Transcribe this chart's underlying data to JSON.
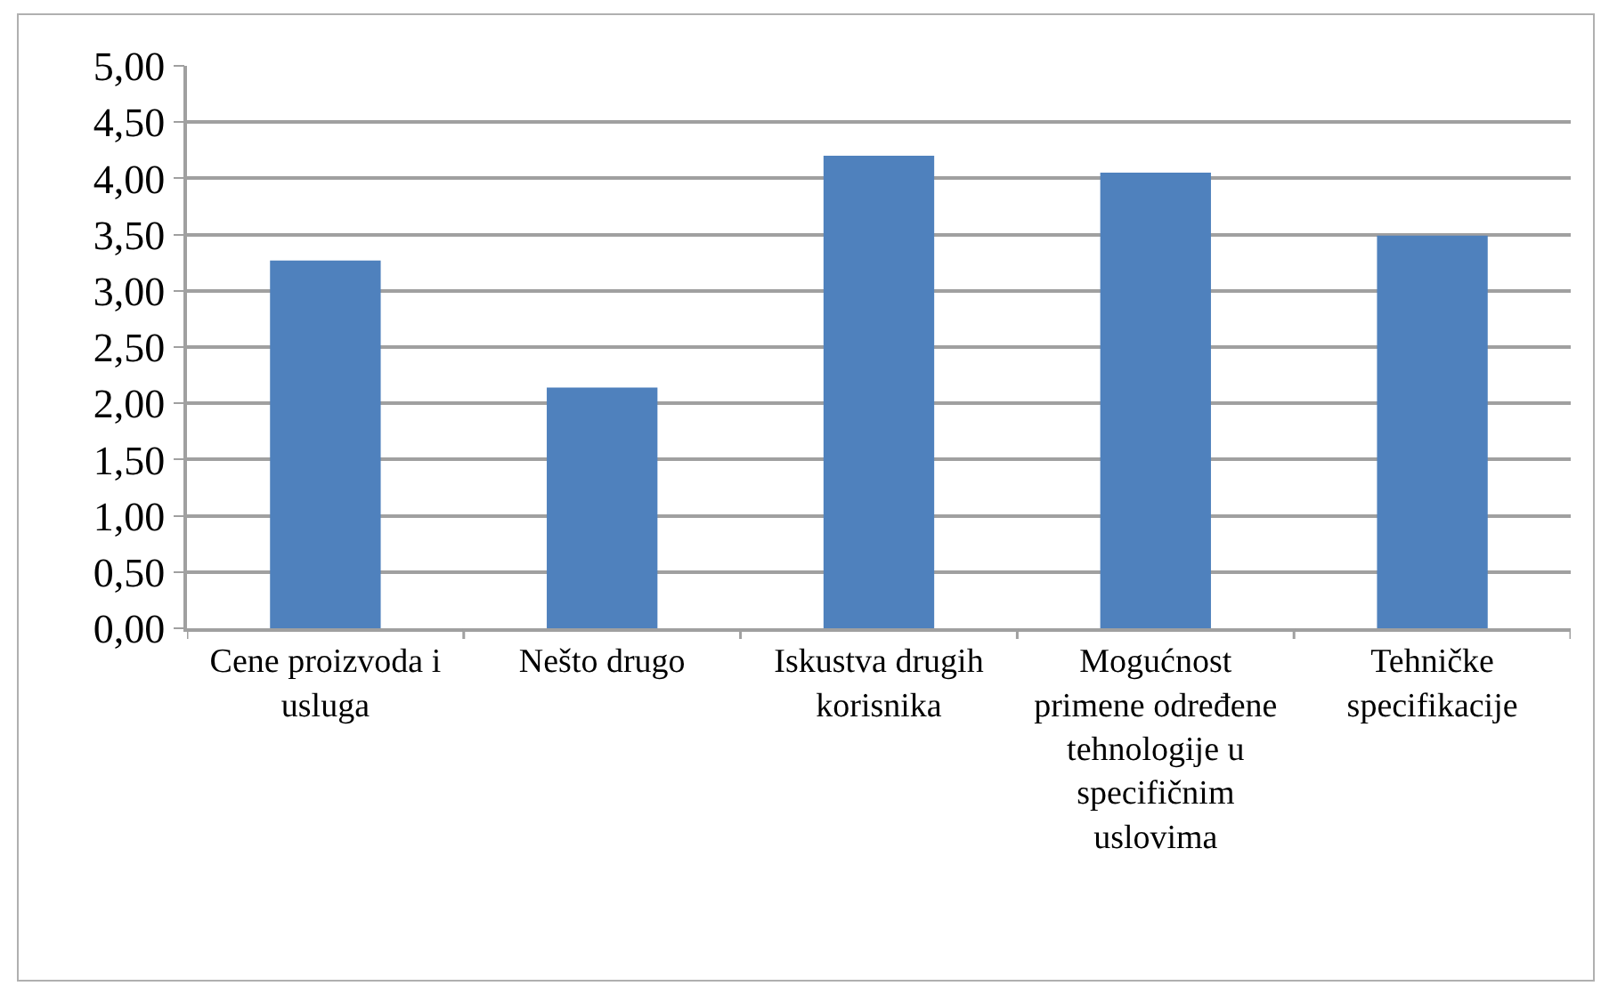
{
  "chart_data": {
    "type": "bar",
    "categories": [
      "Cene proizvoda i usluga",
      "Nešto drugo",
      "Iskustva drugih korisnika",
      "Mogućnost primene određene tehnologije u specifičnim uslovima",
      "Tehničke specifikacije"
    ],
    "values": [
      3.27,
      2.14,
      4.2,
      4.05,
      3.49
    ],
    "color": "#4f81bd",
    "ylim": [
      0,
      5
    ],
    "yticks": [
      {
        "value": 0,
        "label": "0,00"
      },
      {
        "value": 0.5,
        "label": "0,50"
      },
      {
        "value": 1,
        "label": "1,00"
      },
      {
        "value": 1.5,
        "label": "1,50"
      },
      {
        "value": 2,
        "label": "2,00"
      },
      {
        "value": 2.5,
        "label": "2,50"
      },
      {
        "value": 3,
        "label": "3,00"
      },
      {
        "value": 3.5,
        "label": "3,50"
      },
      {
        "value": 4,
        "label": "4,00"
      },
      {
        "value": 4.5,
        "label": "4,50"
      },
      {
        "value": 5,
        "label": "5,00"
      }
    ],
    "grid": "y"
  }
}
